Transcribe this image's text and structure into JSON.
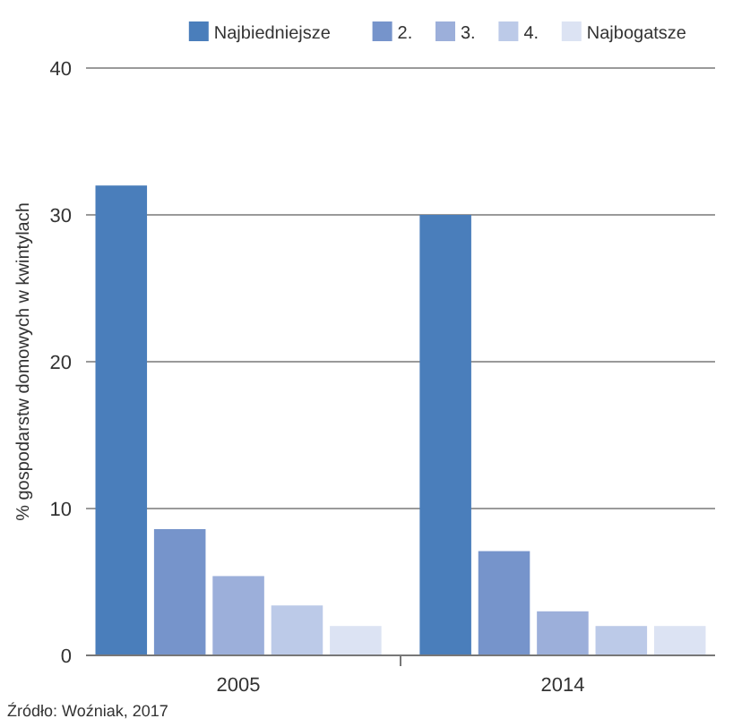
{
  "chart_data": {
    "type": "bar",
    "categories": [
      "2005",
      "2014"
    ],
    "ylabel": "% gospodarstw domowych w kwintylach",
    "series": [
      {
        "name": "Najbiedniejsze",
        "color": "#4a7ebb",
        "values": [
          32,
          30
        ]
      },
      {
        "name": "2.",
        "color": "#7694cb",
        "values": [
          8.6,
          7.1
        ]
      },
      {
        "name": "3.",
        "color": "#9cafda",
        "values": [
          5.4,
          3.0
        ]
      },
      {
        "name": "4.",
        "color": "#bccae8",
        "values": [
          3.4,
          2.0
        ]
      },
      {
        "name": "Najbogatsze",
        "color": "#dce3f3",
        "values": [
          2.0,
          2.0
        ]
      }
    ],
    "ylim": [
      0,
      40
    ],
    "yticks": [
      0,
      10,
      20,
      30,
      40
    ],
    "grid": "y",
    "legend": "top right",
    "annotations": [
      "Źródło: Woźniak, 2017"
    ]
  }
}
